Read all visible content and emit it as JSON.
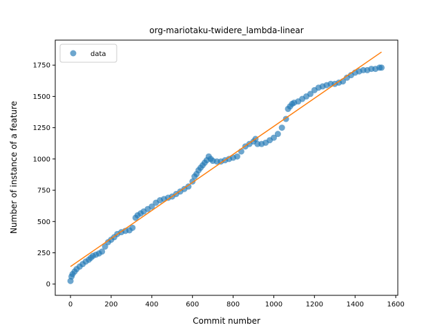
{
  "chart_data": {
    "type": "scatter",
    "title": "org-mariotaku-twidere_lambda-linear",
    "xlabel": "Commit number",
    "ylabel": "Number of instance of a feature",
    "xlim": [
      -75,
      1610
    ],
    "ylim": [
      -90,
      1950
    ],
    "xticks": [
      0,
      200,
      400,
      600,
      800,
      1000,
      1200,
      1400,
      1600
    ],
    "yticks": [
      0,
      250,
      500,
      750,
      1000,
      1250,
      1500,
      1750
    ],
    "legend": {
      "position": "top-left",
      "entries": [
        "data"
      ]
    },
    "colors": {
      "data": "#1f77b4",
      "fit": "#ff7f0e"
    },
    "series": [
      {
        "name": "data",
        "kind": "scatter",
        "x": [
          0,
          5,
          10,
          20,
          30,
          45,
          60,
          75,
          90,
          100,
          110,
          125,
          140,
          155,
          170,
          185,
          200,
          215,
          230,
          250,
          270,
          290,
          305,
          320,
          330,
          345,
          360,
          380,
          400,
          420,
          440,
          460,
          480,
          500,
          520,
          540,
          560,
          580,
          600,
          610,
          620,
          630,
          640,
          650,
          660,
          670,
          680,
          690,
          700,
          720,
          740,
          760,
          780,
          800,
          820,
          840,
          860,
          880,
          900,
          910,
          920,
          940,
          960,
          980,
          1000,
          1020,
          1040,
          1060,
          1070,
          1080,
          1090,
          1100,
          1120,
          1140,
          1160,
          1180,
          1200,
          1220,
          1240,
          1260,
          1280,
          1300,
          1320,
          1340,
          1360,
          1380,
          1400,
          1420,
          1440,
          1460,
          1480,
          1500,
          1520,
          1530
        ],
        "y": [
          25,
          60,
          80,
          100,
          120,
          140,
          160,
          180,
          195,
          210,
          225,
          235,
          245,
          260,
          300,
          335,
          355,
          375,
          400,
          415,
          425,
          430,
          450,
          530,
          550,
          565,
          580,
          600,
          620,
          650,
          670,
          680,
          690,
          700,
          720,
          740,
          760,
          780,
          820,
          860,
          880,
          910,
          930,
          950,
          970,
          990,
          1020,
          1000,
          985,
          980,
          980,
          990,
          1000,
          1010,
          1020,
          1060,
          1100,
          1120,
          1140,
          1160,
          1120,
          1120,
          1130,
          1150,
          1170,
          1200,
          1250,
          1320,
          1400,
          1420,
          1440,
          1450,
          1460,
          1480,
          1500,
          1520,
          1550,
          1570,
          1580,
          1590,
          1600,
          1600,
          1610,
          1620,
          1650,
          1670,
          1690,
          1700,
          1710,
          1710,
          1720,
          1720,
          1730,
          1730
        ]
      },
      {
        "name": "",
        "kind": "line",
        "x": [
          0,
          1530
        ],
        "y": [
          140,
          1855
        ]
      }
    ]
  }
}
